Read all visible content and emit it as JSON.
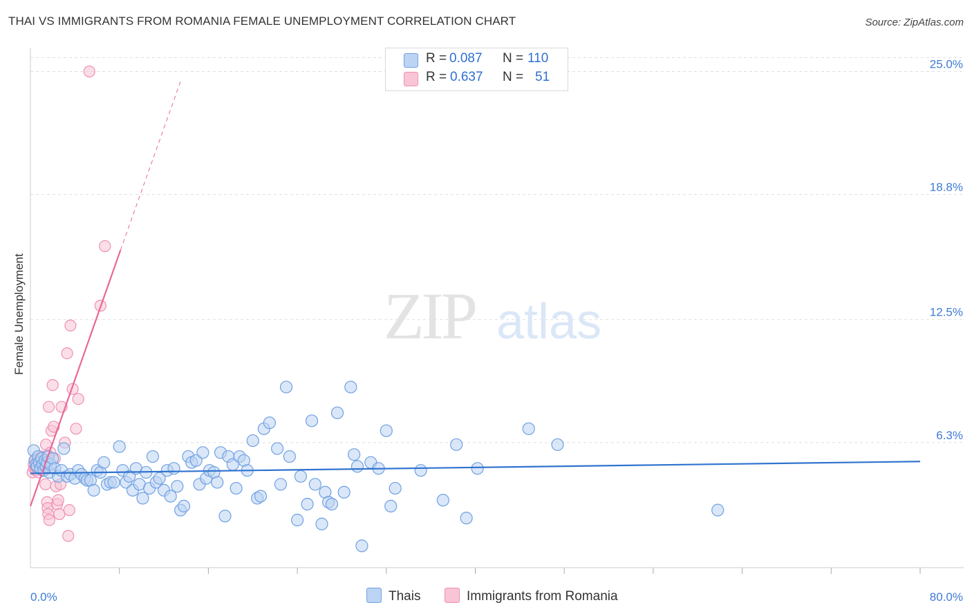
{
  "title": "THAI VS IMMIGRANTS FROM ROMANIA FEMALE UNEMPLOYMENT CORRELATION CHART",
  "source": "Source: ZipAtlas.com",
  "watermark": {
    "zip": "ZIP",
    "atlas": "atlas"
  },
  "legend_top": {
    "rows": [
      {
        "r_label": "R =",
        "r_value": "0.087",
        "n_label": "N =",
        "n_value": "110"
      },
      {
        "r_label": "R =",
        "r_value": "0.637",
        "n_label": "N =",
        "n_value": "51"
      }
    ]
  },
  "legend_bottom": {
    "thai": "Thais",
    "romania": "Immigrants from Romania"
  },
  "colors": {
    "thai_fill": "#bcd4f3",
    "thai_stroke": "#6fa0e2",
    "thai_line": "#2f73cf",
    "romania_fill": "#f8c4d6",
    "romania_stroke": "#ef8fb2",
    "romania_line": "#e8679a",
    "tick_text": "#3d7ad6",
    "grid": "#dddddd"
  },
  "chart_data": {
    "type": "scatter",
    "title": "THAI VS IMMIGRANTS FROM ROMANIA FEMALE UNEMPLOYMENT CORRELATION CHART",
    "xlabel": "",
    "ylabel": "Female Unemployment",
    "xlim": [
      0,
      80
    ],
    "ylim": [
      0,
      26.2
    ],
    "x_tick_labels": [
      "0.0%",
      "80.0%"
    ],
    "y_ticks": [
      6.3,
      12.5,
      18.8,
      25.0
    ],
    "y_tick_labels": [
      "6.3%",
      "12.5%",
      "18.8%",
      "25.0%"
    ],
    "grid": true,
    "series": [
      {
        "name": "Thais",
        "R": 0.087,
        "N": 110,
        "trend": {
          "x0": 0,
          "y0": 4.75,
          "x1": 80,
          "y1": 5.35
        },
        "points": [
          [
            0.3,
            5.9
          ],
          [
            0.4,
            5.4
          ],
          [
            0.5,
            5.2
          ],
          [
            0.6,
            5.1
          ],
          [
            0.7,
            5.6
          ],
          [
            0.8,
            5.3
          ],
          [
            0.9,
            5.0
          ],
          [
            1.0,
            5.5
          ],
          [
            1.1,
            5.2
          ],
          [
            1.2,
            4.9
          ],
          [
            1.3,
            5.4
          ],
          [
            1.4,
            5.1
          ],
          [
            1.5,
            5.3
          ],
          [
            1.6,
            5.6
          ],
          [
            1.7,
            4.8
          ],
          [
            1.8,
            5.2
          ],
          [
            2.0,
            5.5
          ],
          [
            2.2,
            5.0
          ],
          [
            2.5,
            4.6
          ],
          [
            2.8,
            4.9
          ],
          [
            3.0,
            6.0
          ],
          [
            3.3,
            4.6
          ],
          [
            3.6,
            4.7
          ],
          [
            4.0,
            4.5
          ],
          [
            4.3,
            4.9
          ],
          [
            4.6,
            4.7
          ],
          [
            4.9,
            4.5
          ],
          [
            5.1,
            4.4
          ],
          [
            5.4,
            4.4
          ],
          [
            5.7,
            3.9
          ],
          [
            6.0,
            4.9
          ],
          [
            6.3,
            4.8
          ],
          [
            6.6,
            5.3
          ],
          [
            6.9,
            4.2
          ],
          [
            7.2,
            4.3
          ],
          [
            7.5,
            4.3
          ],
          [
            8.0,
            6.1
          ],
          [
            8.3,
            4.9
          ],
          [
            8.6,
            4.3
          ],
          [
            8.9,
            4.6
          ],
          [
            9.2,
            3.9
          ],
          [
            9.5,
            5.0
          ],
          [
            9.8,
            4.2
          ],
          [
            10.1,
            3.5
          ],
          [
            10.4,
            4.8
          ],
          [
            10.7,
            4.0
          ],
          [
            11.0,
            5.6
          ],
          [
            11.3,
            4.3
          ],
          [
            11.6,
            4.5
          ],
          [
            12.0,
            3.9
          ],
          [
            12.3,
            4.9
          ],
          [
            12.6,
            3.6
          ],
          [
            12.9,
            5.0
          ],
          [
            13.2,
            4.1
          ],
          [
            13.5,
            2.9
          ],
          [
            13.8,
            3.1
          ],
          [
            14.2,
            5.6
          ],
          [
            14.5,
            5.3
          ],
          [
            14.9,
            5.4
          ],
          [
            15.2,
            4.2
          ],
          [
            15.5,
            5.8
          ],
          [
            15.8,
            4.5
          ],
          [
            16.1,
            4.9
          ],
          [
            16.5,
            4.8
          ],
          [
            16.8,
            4.3
          ],
          [
            17.1,
            5.8
          ],
          [
            17.5,
            2.6
          ],
          [
            17.8,
            5.6
          ],
          [
            18.2,
            5.2
          ],
          [
            18.5,
            4.0
          ],
          [
            18.8,
            5.6
          ],
          [
            19.2,
            5.4
          ],
          [
            19.5,
            4.9
          ],
          [
            20.0,
            6.4
          ],
          [
            20.4,
            3.5
          ],
          [
            20.7,
            3.6
          ],
          [
            21.0,
            7.0
          ],
          [
            21.5,
            7.3
          ],
          [
            22.2,
            6.0
          ],
          [
            22.5,
            4.2
          ],
          [
            23.0,
            9.1
          ],
          [
            23.3,
            5.6
          ],
          [
            24.0,
            2.4
          ],
          [
            24.3,
            4.6
          ],
          [
            24.9,
            3.2
          ],
          [
            25.3,
            7.4
          ],
          [
            25.6,
            4.2
          ],
          [
            26.2,
            2.2
          ],
          [
            26.5,
            3.8
          ],
          [
            26.8,
            3.3
          ],
          [
            27.1,
            3.2
          ],
          [
            27.6,
            7.8
          ],
          [
            28.2,
            3.8
          ],
          [
            28.8,
            9.1
          ],
          [
            29.1,
            5.7
          ],
          [
            29.4,
            5.1
          ],
          [
            29.8,
            1.1
          ],
          [
            30.6,
            5.3
          ],
          [
            31.3,
            5.0
          ],
          [
            32.0,
            6.9
          ],
          [
            32.4,
            3.1
          ],
          [
            32.8,
            4.0
          ],
          [
            35.1,
            4.9
          ],
          [
            37.1,
            3.4
          ],
          [
            38.3,
            6.2
          ],
          [
            39.2,
            2.5
          ],
          [
            40.2,
            5.0
          ],
          [
            44.8,
            7.0
          ],
          [
            47.4,
            6.2
          ],
          [
            61.8,
            2.9
          ]
        ]
      },
      {
        "name": "Immigrants from Romania",
        "R": 0.637,
        "N": 51,
        "trend": {
          "x0": 0,
          "y0": 3.1,
          "x1": 8.1,
          "y1": 16.0,
          "dash_to_x": 13.5,
          "dash_to_y": 24.5
        },
        "points": [
          [
            0.2,
            4.8
          ],
          [
            0.3,
            5.2
          ],
          [
            0.35,
            5.0
          ],
          [
            0.4,
            5.4
          ],
          [
            0.45,
            5.1
          ],
          [
            0.5,
            4.9
          ],
          [
            0.55,
            5.3
          ],
          [
            0.6,
            5.0
          ],
          [
            0.65,
            5.5
          ],
          [
            0.7,
            5.2
          ],
          [
            0.75,
            4.8
          ],
          [
            0.8,
            5.1
          ],
          [
            0.85,
            5.4
          ],
          [
            0.9,
            5.0
          ],
          [
            0.95,
            5.3
          ],
          [
            1.0,
            5.6
          ],
          [
            1.05,
            5.1
          ],
          [
            1.1,
            4.9
          ],
          [
            1.15,
            5.2
          ],
          [
            1.2,
            5.4
          ],
          [
            1.25,
            5.0
          ],
          [
            1.3,
            5.3
          ],
          [
            1.35,
            4.2
          ],
          [
            1.4,
            6.2
          ],
          [
            1.45,
            5.6
          ],
          [
            1.5,
            3.3
          ],
          [
            1.55,
            3.0
          ],
          [
            1.6,
            2.7
          ],
          [
            1.65,
            8.1
          ],
          [
            1.7,
            2.4
          ],
          [
            1.8,
            5.8
          ],
          [
            1.9,
            6.9
          ],
          [
            2.0,
            9.2
          ],
          [
            2.1,
            7.1
          ],
          [
            2.2,
            5.5
          ],
          [
            2.3,
            4.1
          ],
          [
            2.4,
            3.2
          ],
          [
            2.5,
            3.4
          ],
          [
            2.6,
            2.7
          ],
          [
            2.7,
            4.2
          ],
          [
            2.8,
            8.1
          ],
          [
            3.1,
            6.3
          ],
          [
            3.3,
            10.8
          ],
          [
            3.4,
            1.6
          ],
          [
            3.5,
            2.9
          ],
          [
            3.6,
            12.2
          ],
          [
            3.8,
            9.0
          ],
          [
            4.1,
            7.0
          ],
          [
            4.3,
            8.5
          ],
          [
            6.3,
            13.2
          ],
          [
            6.7,
            16.2
          ],
          [
            5.3,
            25.0
          ]
        ]
      }
    ]
  }
}
